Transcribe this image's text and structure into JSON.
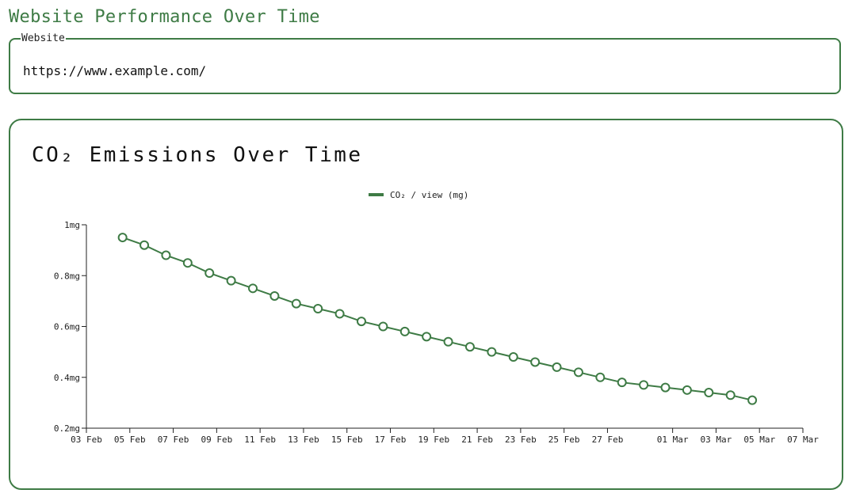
{
  "page": {
    "title": "Website Performance Over Time"
  },
  "website": {
    "legend": "Website",
    "value": "https://www.example.com/"
  },
  "colors": {
    "accent": "#3e7b45",
    "point_fill": "#ffffff"
  },
  "chart_data": {
    "type": "line",
    "title": "CO₂ Emissions Over Time",
    "xlabel": "",
    "ylabel": "",
    "x_type": "date",
    "xlim": [
      "2024-02-03",
      "2024-03-07"
    ],
    "ylim": [
      0.2,
      1
    ],
    "y_ticks": [
      {
        "value": 1,
        "label": "1mg"
      },
      {
        "value": 0.8,
        "label": "0.8mg"
      },
      {
        "value": 0.6,
        "label": "0.6mg"
      },
      {
        "value": 0.4,
        "label": "0.4mg"
      },
      {
        "value": 0.2,
        "label": "0.2mg"
      }
    ],
    "x_ticks": [
      {
        "value": "2024-02-03",
        "label": "03 Feb"
      },
      {
        "value": "2024-02-05",
        "label": "05 Feb"
      },
      {
        "value": "2024-02-07",
        "label": "07 Feb"
      },
      {
        "value": "2024-02-09",
        "label": "09 Feb"
      },
      {
        "value": "2024-02-11",
        "label": "11 Feb"
      },
      {
        "value": "2024-02-13",
        "label": "13 Feb"
      },
      {
        "value": "2024-02-15",
        "label": "15 Feb"
      },
      {
        "value": "2024-02-17",
        "label": "17 Feb"
      },
      {
        "value": "2024-02-19",
        "label": "19 Feb"
      },
      {
        "value": "2024-02-21",
        "label": "21 Feb"
      },
      {
        "value": "2024-02-23",
        "label": "23 Feb"
      },
      {
        "value": "2024-02-25",
        "label": "25 Feb"
      },
      {
        "value": "2024-02-27",
        "label": "27 Feb"
      },
      {
        "value": "2024-03-01",
        "label": "01 Mar"
      },
      {
        "value": "2024-03-03",
        "label": "03 Mar"
      },
      {
        "value": "2024-03-05",
        "label": "05 Mar"
      },
      {
        "value": "2024-03-07",
        "label": "07 Mar"
      }
    ],
    "legend": {
      "position": "top-center"
    },
    "grid": false,
    "series": [
      {
        "name": "CO₂ / view (mg)",
        "color": "#3e7b45",
        "points": [
          {
            "x": "2024-02-04T16:00",
            "y": 0.95
          },
          {
            "x": "2024-02-05T16:00",
            "y": 0.92
          },
          {
            "x": "2024-02-06T16:00",
            "y": 0.88
          },
          {
            "x": "2024-02-07T16:00",
            "y": 0.85
          },
          {
            "x": "2024-02-08T16:00",
            "y": 0.81
          },
          {
            "x": "2024-02-09T16:00",
            "y": 0.78
          },
          {
            "x": "2024-02-10T16:00",
            "y": 0.75
          },
          {
            "x": "2024-02-11T16:00",
            "y": 0.72
          },
          {
            "x": "2024-02-12T16:00",
            "y": 0.69
          },
          {
            "x": "2024-02-13T16:00",
            "y": 0.67
          },
          {
            "x": "2024-02-14T16:00",
            "y": 0.65
          },
          {
            "x": "2024-02-15T16:00",
            "y": 0.62
          },
          {
            "x": "2024-02-16T16:00",
            "y": 0.6
          },
          {
            "x": "2024-02-17T16:00",
            "y": 0.58
          },
          {
            "x": "2024-02-18T16:00",
            "y": 0.56
          },
          {
            "x": "2024-02-19T16:00",
            "y": 0.54
          },
          {
            "x": "2024-02-20T16:00",
            "y": 0.52
          },
          {
            "x": "2024-02-21T16:00",
            "y": 0.5
          },
          {
            "x": "2024-02-22T16:00",
            "y": 0.48
          },
          {
            "x": "2024-02-23T16:00",
            "y": 0.46
          },
          {
            "x": "2024-02-24T16:00",
            "y": 0.44
          },
          {
            "x": "2024-02-25T16:00",
            "y": 0.42
          },
          {
            "x": "2024-02-26T16:00",
            "y": 0.4
          },
          {
            "x": "2024-02-27T16:00",
            "y": 0.38
          },
          {
            "x": "2024-02-28T16:00",
            "y": 0.37
          },
          {
            "x": "2024-02-29T16:00",
            "y": 0.36
          },
          {
            "x": "2024-03-01T16:00",
            "y": 0.35
          },
          {
            "x": "2024-03-02T16:00",
            "y": 0.34
          },
          {
            "x": "2024-03-03T16:00",
            "y": 0.33
          },
          {
            "x": "2024-03-04T16:00",
            "y": 0.31
          }
        ]
      }
    ]
  }
}
